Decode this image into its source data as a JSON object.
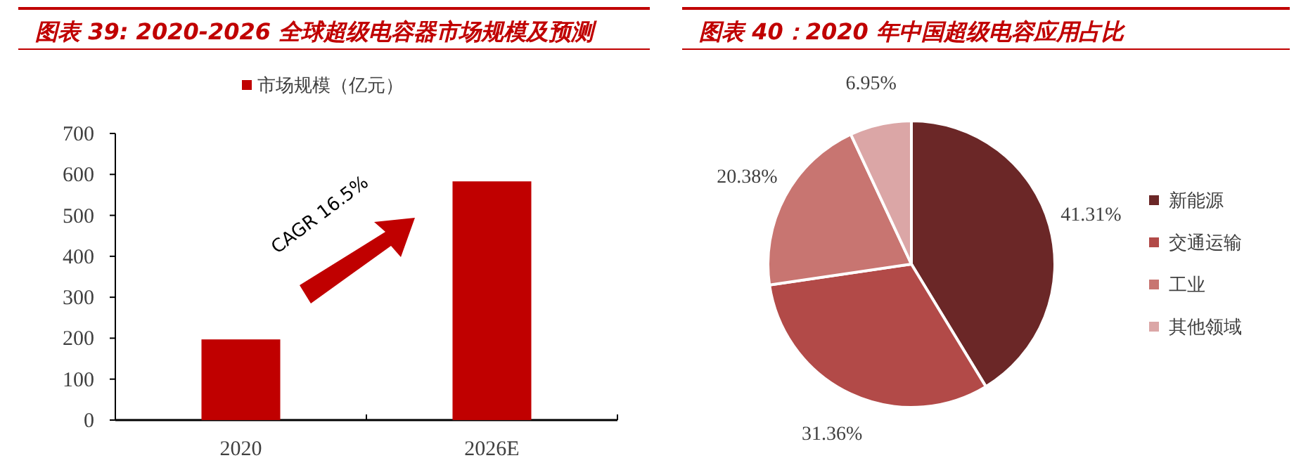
{
  "chart_data": [
    {
      "type": "bar",
      "title": "图表 39: 2020-2026 全球超级电容器市场规模及预测",
      "categories": [
        "2020",
        "2026E"
      ],
      "series": [
        {
          "name": "市场规模（亿元）",
          "color": "#c00000",
          "values": [
            197,
            583
          ]
        }
      ],
      "ylim": [
        0,
        700
      ],
      "yticks": [
        0,
        100,
        200,
        300,
        400,
        500,
        600,
        700
      ],
      "legend": "top",
      "annotations": [
        "CAGR 16.5%"
      ]
    },
    {
      "type": "pie",
      "title": "图表 40：2020 年中国超级电容应用占比",
      "categories": [
        "新能源",
        "交通运输",
        "工业",
        "其他领域"
      ],
      "values": [
        41.31,
        31.36,
        20.38,
        6.95
      ],
      "colors": [
        "#6b2727",
        "#b24a48",
        "#c87571",
        "#dba6a6"
      ],
      "value_labels": [
        "41.31%",
        "31.36%",
        "20.38%",
        "6.95%"
      ],
      "legend": "right"
    }
  ]
}
